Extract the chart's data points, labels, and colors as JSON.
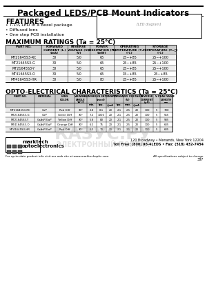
{
  "title": "Packaged LEDS/PCB Mount Indicators",
  "features_title": "FEATURES",
  "features": [
    "• T-1¾ LED in a bezel package",
    "• Diffused lens",
    "• One step PCB installation"
  ],
  "max_ratings_title": "MAXIMUM RATINGS (Ta = 25°C)",
  "max_ratings_headers": [
    "PART NO.",
    "FORWARD\nCURRENT (Iₑ)\n(mA)",
    "REVERSE\nVOLTAGE (Vᵣ)\n(V)",
    "POWER\nDISSIPATION (Pₑ)\n(mW)",
    "OPERATING\nTEMPERATURE (Tₒₙ)\n(°C)",
    "STORAGE\nTEMPERATURE (Tₛₜ₟)\n(°C)"
  ],
  "max_ratings_rows": [
    [
      "MT21645S3-RC",
      "30",
      "5.0",
      "65",
      "25~+85",
      "25~+100"
    ],
    [
      "MT21645S3-G",
      "30",
      "5.0",
      "65",
      "25~+85",
      "25~+100"
    ],
    [
      "MT21645S3-Y",
      "30",
      "5.0",
      "65",
      "25~+85",
      "25~+100"
    ],
    [
      "MT41645S3-O",
      "30",
      "5.0",
      "65",
      "15~+85",
      "25~+85"
    ],
    [
      "MT41645S3-HR",
      "30",
      "5.0",
      "80",
      "25~+85",
      "25~+100"
    ]
  ],
  "opto_title": "OPTO-ELECTRICAL CHARACTERISTICS (Ta = 25°C)",
  "opto_headers_row1": [
    "PART NO.",
    "MATERIAL",
    "LENS\nCOLOR",
    "VIEWING\nANGLE\n2θ1/2",
    "LUMINOUS INTENSITY\n(mcd)",
    "",
    "",
    "FORWARD VOLTAGE\n(V)",
    "",
    "",
    "REVERSE\nCURRENT\n(μA)",
    "Vᵣ",
    "PEAK WAVE\nLENGTH\nnm"
  ],
  "opto_headers_row2": [
    "",
    "",
    "",
    "",
    "min.",
    "typ.",
    "@mA",
    "typ.",
    "max.",
    "@mA",
    "",
    "",
    ""
  ],
  "opto_rows": [
    [
      "MT21645S3-RC",
      "GaP",
      "Red Diff",
      "30°",
      "2.8",
      "8.1",
      "20",
      "2.1",
      "2.5",
      "20",
      "100",
      "5",
      "700"
    ],
    [
      "MT21645S3-G",
      "GaP",
      "Green Diff",
      "30°",
      "7.2",
      "1000",
      "20",
      "2.1",
      "2.5",
      "20",
      "100",
      "5",
      "565"
    ],
    [
      "MT21645S3-Y",
      "GaAsP/GaP",
      "Yellow Diff",
      "30°",
      "5.8",
      "80",
      "20",
      "2.1",
      "2.5",
      "20",
      "100",
      "5",
      "585"
    ],
    [
      "MT41645S3-O",
      "GaAsP/GaP",
      "Orange Diff",
      "30°",
      "6.2",
      "75",
      "20",
      "2.1",
      "2.5",
      "20",
      "100",
      "5",
      "635"
    ],
    [
      "MT41645S3-HR",
      "GaAsP/GaP",
      "Red Diff",
      "30°",
      "6.2",
      "70",
      "20",
      "2.1",
      "2.5",
      "20",
      "100",
      "5",
      "635"
    ]
  ],
  "footer_logo": "marktech\noptoelectronics",
  "footer_address": "120 Broadway • Menands, New York 12204",
  "footer_phone": "Toll Free: (800) 98-4LEDS • Fax: (518) 432-7454",
  "footer_web": "For up-to-date product info visit our web site at www.marktechoptic.com",
  "footer_note": "All specifications subject to change.",
  "page_num": "387",
  "bg_color": "#ffffff",
  "header_bg": "#000000",
  "table_header_bg": "#d0d0d0",
  "table_line_color": "#000000"
}
